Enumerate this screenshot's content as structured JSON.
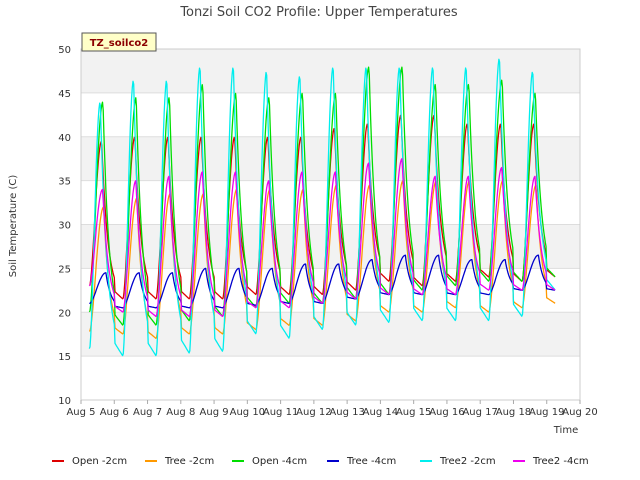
{
  "chart_data": {
    "type": "line",
    "title": "Tonzi Soil CO2 Profile: Upper Temperatures",
    "xlabel": "Time",
    "ylabel": "Soil Temperature (C)",
    "site_badge": "TZ_soilco2",
    "ylim": [
      10,
      50
    ],
    "yticks": [
      10,
      15,
      20,
      25,
      30,
      35,
      40,
      45,
      50
    ],
    "xlim": [
      5,
      20
    ],
    "xticks": [
      {
        "value": 5,
        "label": "Aug 5"
      },
      {
        "value": 6,
        "label": "Aug 6"
      },
      {
        "value": 7,
        "label": "Aug 7"
      },
      {
        "value": 8,
        "label": "Aug 8"
      },
      {
        "value": 9,
        "label": "Aug 9"
      },
      {
        "value": 10,
        "label": "Aug 10"
      },
      {
        "value": 11,
        "label": "Aug 11"
      },
      {
        "value": 12,
        "label": "Aug 12"
      },
      {
        "value": 13,
        "label": "Aug 13"
      },
      {
        "value": 14,
        "label": "Aug 14"
      },
      {
        "value": 15,
        "label": "Aug 15"
      },
      {
        "value": 16,
        "label": "Aug 16"
      },
      {
        "value": 17,
        "label": "Aug 17"
      },
      {
        "value": 18,
        "label": "Aug 18"
      },
      {
        "value": 19,
        "label": "Aug 19"
      },
      {
        "value": 20,
        "label": "Aug 20"
      }
    ],
    "background_bands": true,
    "legend_position": "bottom",
    "series": [
      {
        "name": "Open -2cm",
        "color": "#dd0000",
        "start": 5.25,
        "end": 19.25,
        "peak_hour": 0.62,
        "minima": [
          23.0,
          21.5,
          21.5,
          21.5,
          21.5,
          22.0,
          22.0,
          22.0,
          22.5,
          23.5,
          23.0,
          23.5,
          24.0,
          23.5,
          24.0
        ],
        "maxima": [
          39.5,
          40.0,
          40.0,
          40.0,
          40.0,
          40.0,
          40.0,
          41.0,
          41.5,
          42.5,
          42.5,
          41.5,
          41.5,
          41.5,
          40.5
        ]
      },
      {
        "name": "Tree -2cm",
        "color": "#ff9900",
        "start": 5.25,
        "end": 19.25,
        "peak_hour": 0.68,
        "minima": [
          17.8,
          17.5,
          17.0,
          17.5,
          17.5,
          18.0,
          18.5,
          18.5,
          19.0,
          20.0,
          20.0,
          20.5,
          20.0,
          20.5,
          21.0
        ],
        "maxima": [
          32.0,
          33.0,
          33.5,
          33.5,
          34.0,
          34.0,
          34.0,
          34.5,
          34.5,
          35.0,
          35.0,
          35.0,
          35.0,
          34.5,
          34.0
        ]
      },
      {
        "name": "Open -4cm",
        "color": "#00dd00",
        "start": 5.25,
        "end": 19.25,
        "peak_hour": 0.66,
        "minima": [
          20.0,
          18.5,
          18.5,
          19.0,
          19.5,
          20.5,
          21.0,
          21.0,
          21.5,
          22.0,
          22.5,
          23.0,
          23.5,
          23.5,
          24.0
        ],
        "maxima": [
          44.0,
          44.5,
          44.5,
          46.0,
          45.0,
          44.5,
          45.0,
          45.0,
          48.0,
          48.0,
          46.0,
          46.0,
          46.5,
          45.0,
          45.0
        ]
      },
      {
        "name": "Tree -4cm",
        "color": "#0000cc",
        "start": 5.25,
        "end": 19.25,
        "peak_hour": 0.75,
        "minima": [
          21.0,
          20.5,
          20.5,
          20.5,
          20.5,
          20.8,
          21.0,
          21.0,
          21.5,
          22.0,
          22.0,
          22.0,
          22.0,
          22.5,
          22.5
        ],
        "maxima": [
          24.5,
          24.5,
          24.5,
          25.0,
          25.0,
          25.0,
          25.5,
          25.5,
          26.0,
          26.5,
          26.5,
          26.0,
          26.0,
          26.5,
          26.0
        ]
      },
      {
        "name": "Tree2 -2cm",
        "color": "#00eeee",
        "start": 5.25,
        "end": 19.25,
        "peak_hour": 0.58,
        "minima": [
          15.8,
          15.0,
          15.0,
          15.3,
          15.5,
          17.5,
          17.0,
          18.0,
          18.5,
          18.8,
          19.0,
          19.0,
          19.0,
          19.5,
          22.5
        ],
        "maxima": [
          44.0,
          46.5,
          46.5,
          48.0,
          48.0,
          47.5,
          47.0,
          48.0,
          48.0,
          48.0,
          48.0,
          48.0,
          49.0,
          47.5,
          47.0
        ]
      },
      {
        "name": "Tree2 -4cm",
        "color": "#ee00ee",
        "start": 5.25,
        "end": 19.25,
        "peak_hour": 0.65,
        "minima": [
          23.0,
          20.0,
          19.5,
          19.5,
          19.5,
          20.5,
          20.5,
          21.0,
          21.5,
          22.0,
          22.0,
          22.0,
          22.5,
          22.5,
          22.5
        ],
        "maxima": [
          34.0,
          35.0,
          35.5,
          36.0,
          36.0,
          35.0,
          36.0,
          36.0,
          37.0,
          37.5,
          35.5,
          35.5,
          36.5,
          35.5,
          35.5
        ]
      }
    ]
  }
}
